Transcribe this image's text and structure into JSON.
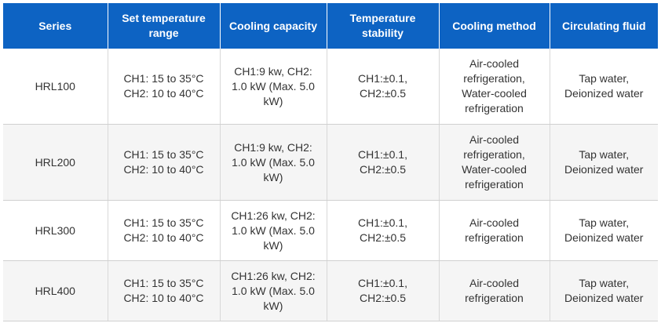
{
  "table": {
    "headers": [
      [
        "Series"
      ],
      [
        "Set temperature",
        "range"
      ],
      [
        "Cooling capacity"
      ],
      [
        "Temperature",
        "stability"
      ],
      [
        "Cooling method"
      ],
      [
        "Circulating fluid"
      ]
    ],
    "rows": [
      {
        "series": [
          "HRL100"
        ],
        "temp_range": [
          "CH1: 15 to 35°C",
          "CH2: 10 to 40°C"
        ],
        "cooling_capacity": [
          "CH1:9 kw, CH2:",
          "1.0 kW (Max. 5.0",
          "kW)"
        ],
        "stability": [
          "CH1:±0.1,",
          "CH2:±0.5"
        ],
        "cooling_method": [
          "Air-cooled",
          "refrigeration,",
          "Water-cooled",
          "refrigeration"
        ],
        "fluid": [
          "Tap water,",
          "Deionized water"
        ]
      },
      {
        "series": [
          "HRL200"
        ],
        "temp_range": [
          "CH1: 15 to 35°C",
          "CH2: 10 to 40°C"
        ],
        "cooling_capacity": [
          "CH1:9 kw, CH2:",
          "1.0 kW (Max. 5.0",
          "kW)"
        ],
        "stability": [
          "CH1:±0.1,",
          "CH2:±0.5"
        ],
        "cooling_method": [
          "Air-cooled",
          "refrigeration,",
          "Water-cooled",
          "refrigeration"
        ],
        "fluid": [
          "Tap water,",
          "Deionized water"
        ]
      },
      {
        "series": [
          "HRL300"
        ],
        "temp_range": [
          "CH1: 15 to 35°C",
          "CH2: 10 to 40°C"
        ],
        "cooling_capacity": [
          "CH1:26 kw, CH2:",
          "1.0 kW (Max. 5.0",
          "kW)"
        ],
        "stability": [
          "CH1:±0.1,",
          "CH2:±0.5"
        ],
        "cooling_method": [
          "Air-cooled",
          "refrigeration"
        ],
        "fluid": [
          "Tap water,",
          "Deionized water"
        ]
      },
      {
        "series": [
          "HRL400"
        ],
        "temp_range": [
          "CH1: 15 to 35°C",
          "CH2: 10 to 40°C"
        ],
        "cooling_capacity": [
          "CH1:26 kw, CH2:",
          "1.0 kW (Max. 5.0",
          "kW)"
        ],
        "stability": [
          "CH1:±0.1,",
          "CH2:±0.5"
        ],
        "cooling_method": [
          "Air-cooled",
          "refrigeration"
        ],
        "fluid": [
          "Tap water,",
          "Deionized water"
        ]
      }
    ]
  }
}
